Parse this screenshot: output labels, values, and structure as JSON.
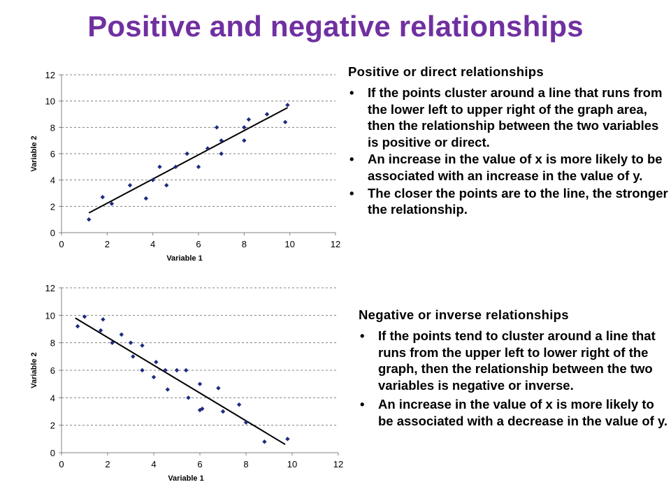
{
  "title": "Positive and negative relationships",
  "positive_section": {
    "heading": "Positive or direct relationships",
    "bullets": [
      "If the points cluster around a line that runs from the lower left to upper right of the graph area, then the relationship between the two variables is positive or direct.",
      "An increase in the value of x is more likely to be associated with an increase in the value of y.",
      "The closer the points are to the line, the stronger the relationship."
    ]
  },
  "negative_section": {
    "heading": "Negative or inverse relationships",
    "bullets": [
      "If the points tend to cluster around a line that runs from the upper left to lower right of the graph, then the relationship between the two variables is negative or inverse.",
      "An increase in the value of x is more likely to be associated with a decrease in the value of y."
    ]
  },
  "colors": {
    "title": "#7030A0",
    "points": "#1F2A80",
    "trendline": "#000000",
    "gridlines": "#808080"
  },
  "chart_data": [
    {
      "type": "scatter",
      "title": "",
      "xlabel": "Variable 1",
      "ylabel": "Variable 2",
      "xlim": [
        0,
        12
      ],
      "ylim": [
        0,
        12
      ],
      "xticks": [
        0,
        2,
        4,
        6,
        8,
        10,
        12
      ],
      "yticks": [
        0,
        2,
        4,
        6,
        8,
        10,
        12
      ],
      "grid": "horizontal dashed",
      "series": [
        {
          "points": [
            [
              1.2,
              1.0
            ],
            [
              1.8,
              2.7
            ],
            [
              2.2,
              2.2
            ],
            [
              3.0,
              3.6
            ],
            [
              3.7,
              2.6
            ],
            [
              4.0,
              4.0
            ],
            [
              4.3,
              5.0
            ],
            [
              4.6,
              3.6
            ],
            [
              5.0,
              5.0
            ],
            [
              5.5,
              6.0
            ],
            [
              6.0,
              5.0
            ],
            [
              6.4,
              6.4
            ],
            [
              6.8,
              8.0
            ],
            [
              7.0,
              7.0
            ],
            [
              7.0,
              6.0
            ],
            [
              8.0,
              8.0
            ],
            [
              8.0,
              7.0
            ],
            [
              8.2,
              8.6
            ],
            [
              9.0,
              9.0
            ],
            [
              9.8,
              8.4
            ],
            [
              9.9,
              9.7
            ]
          ]
        }
      ],
      "trendline": [
        [
          1.2,
          1.5
        ],
        [
          9.9,
          9.5
        ]
      ]
    },
    {
      "type": "scatter",
      "title": "",
      "xlabel": "Variable 1",
      "ylabel": "Variable 2",
      "xlim": [
        0,
        12
      ],
      "ylim": [
        0,
        12
      ],
      "xticks": [
        0,
        2,
        4,
        6,
        8,
        10,
        12
      ],
      "yticks": [
        0,
        2,
        4,
        6,
        8,
        10,
        12
      ],
      "grid": "horizontal dashed",
      "series": [
        {
          "points": [
            [
              0.7,
              9.2
            ],
            [
              1.0,
              9.9
            ],
            [
              1.8,
              9.7
            ],
            [
              1.7,
              8.9
            ],
            [
              2.2,
              8.0
            ],
            [
              2.6,
              8.6
            ],
            [
              3.0,
              8.0
            ],
            [
              3.1,
              7.0
            ],
            [
              3.5,
              7.8
            ],
            [
              3.5,
              6.0
            ],
            [
              4.0,
              5.5
            ],
            [
              4.1,
              6.6
            ],
            [
              4.5,
              6.0
            ],
            [
              4.6,
              4.6
            ],
            [
              5.0,
              6.0
            ],
            [
              5.4,
              6.0
            ],
            [
              5.5,
              4.0
            ],
            [
              6.0,
              5.0
            ],
            [
              6.0,
              3.1
            ],
            [
              6.1,
              3.2
            ],
            [
              6.8,
              4.7
            ],
            [
              7.0,
              3.0
            ],
            [
              7.7,
              3.5
            ],
            [
              8.0,
              2.2
            ],
            [
              8.8,
              0.8
            ],
            [
              9.8,
              1.0
            ]
          ]
        }
      ],
      "trendline": [
        [
          0.6,
          9.8
        ],
        [
          9.7,
          0.6
        ]
      ]
    }
  ]
}
